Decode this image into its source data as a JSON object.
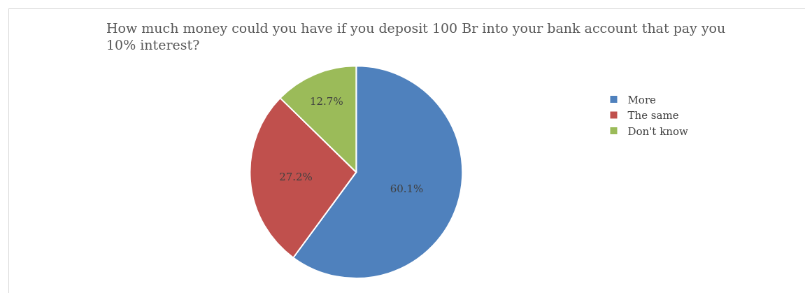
{
  "chart_data": {
    "type": "pie",
    "title": "How much money could you have if you deposit 100 Br into your bank account that pay you 10% interest?",
    "categories": [
      "More",
      "The same",
      "Don't know"
    ],
    "values": [
      60.1,
      27.2,
      12.7
    ],
    "colors": [
      "#4f81bd",
      "#c0504d",
      "#9bbb59"
    ],
    "value_labels": [
      "60.1%",
      "27.2%",
      "12.7%"
    ],
    "legend": "right"
  }
}
